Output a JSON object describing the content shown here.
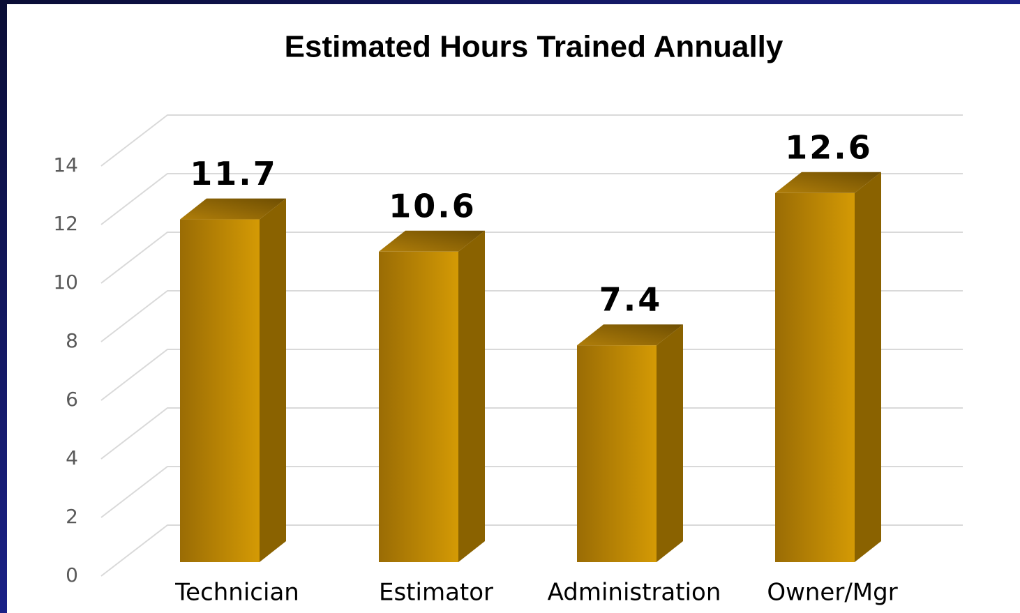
{
  "chart_data": {
    "type": "bar3d",
    "title": "Estimated Hours Trained Annually",
    "categories": [
      "Technician",
      "Estimator",
      "Administration",
      "Owner/Mgr"
    ],
    "values": [
      11.7,
      10.6,
      7.4,
      12.6
    ],
    "color": "#c8920a",
    "ylim": [
      0,
      14
    ],
    "yticks": [
      0,
      2,
      4,
      6,
      8,
      10,
      12,
      14
    ],
    "grid": true
  }
}
